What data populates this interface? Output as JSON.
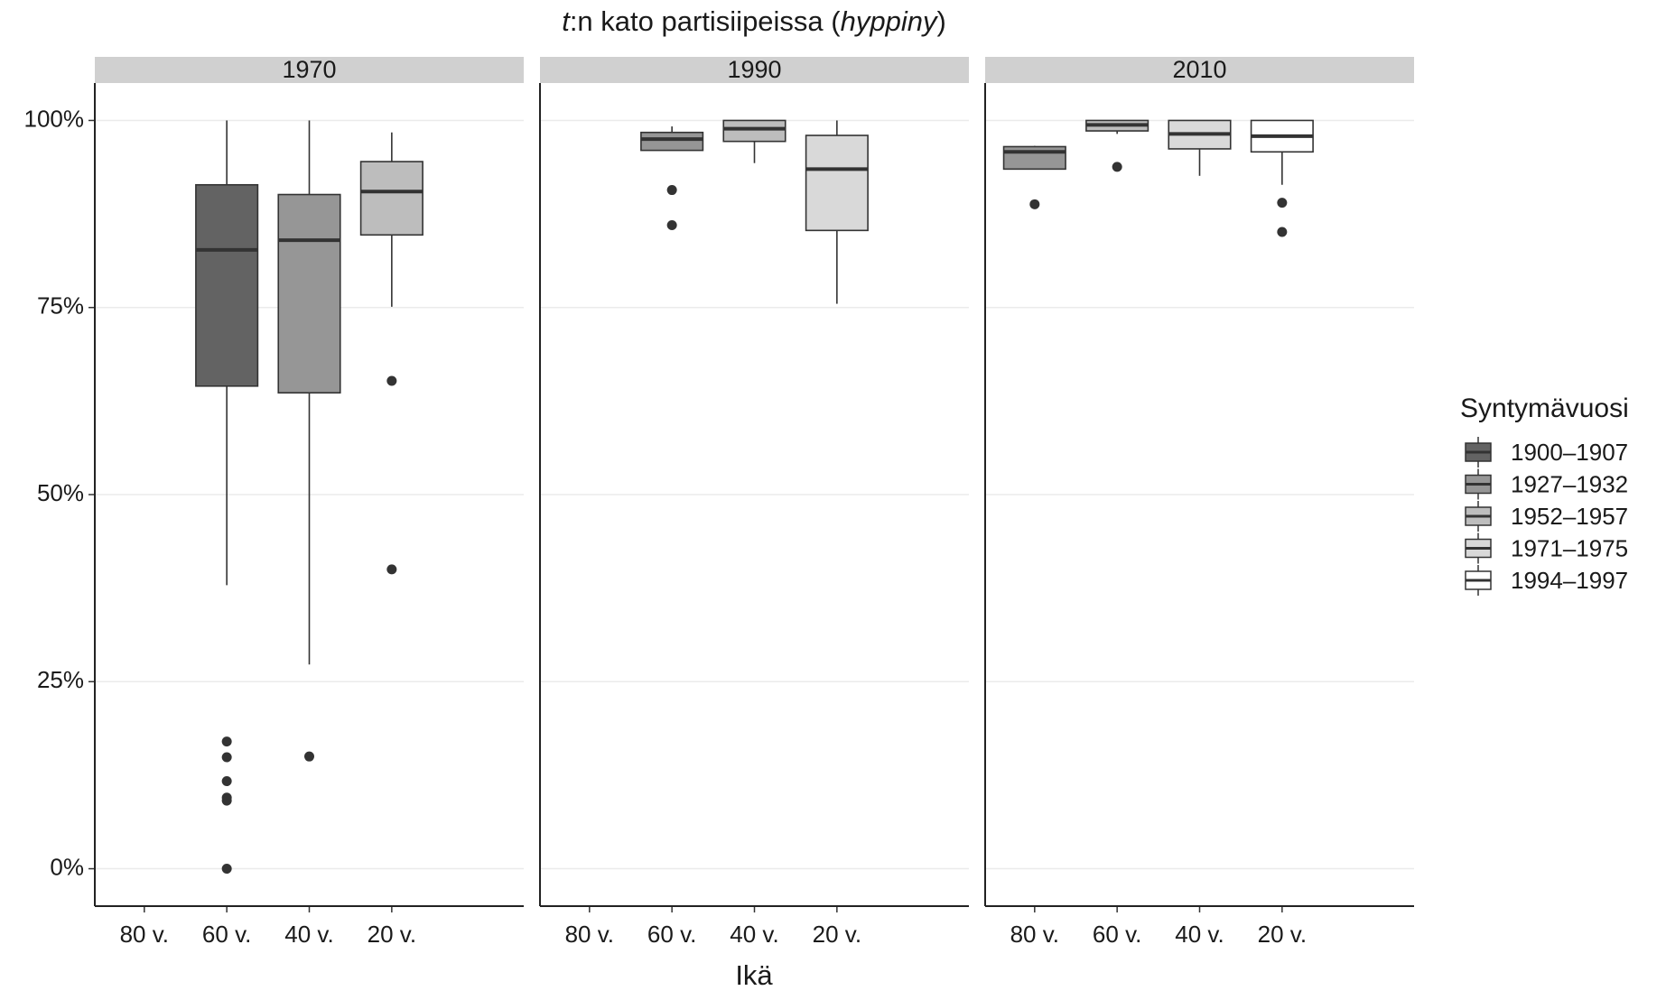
{
  "chart_data": {
    "type": "boxplot",
    "title": [
      {
        "text": "t",
        "italic": true
      },
      {
        "text": ":n kato partisiipeissa (",
        "italic": false
      },
      {
        "text": "hyppiny",
        "italic": true
      },
      {
        "text": ")",
        "italic": false
      }
    ],
    "x_label": "Ikä",
    "legend_title": "Syntymävuosi",
    "categories": [
      "80 v.",
      "60 v.",
      "40 v.",
      "20 v."
    ],
    "groups": [
      {
        "name": "1900–1907",
        "color": "#636363"
      },
      {
        "name": "1927–1932",
        "color": "#969696"
      },
      {
        "name": "1952–1957",
        "color": "#bdbdbd"
      },
      {
        "name": "1971–1975",
        "color": "#d9d9d9"
      },
      {
        "name": "1994–1997",
        "color": "#ffffff"
      }
    ],
    "ylim": [
      -5,
      105
    ],
    "yticks": [
      {
        "value": 0,
        "label": "0%"
      },
      {
        "value": 25,
        "label": "25%"
      },
      {
        "value": 50,
        "label": "50%"
      },
      {
        "value": 75,
        "label": "75%"
      },
      {
        "value": 100,
        "label": "100%"
      }
    ],
    "grid": true,
    "panels": [
      {
        "title": "1970",
        "boxes": [
          {
            "category": "60 v.",
            "group": "1900–1907",
            "whisker_low": 37.9,
            "q1": 64.5,
            "median": 82.7,
            "q3": 91.4,
            "whisker_high": 100,
            "outliers": [
              17.0,
              14.9,
              11.7,
              9.5,
              9.1,
              0
            ]
          },
          {
            "category": "40 v.",
            "group": "1927–1932",
            "whisker_low": 27.3,
            "q1": 63.6,
            "median": 84.0,
            "q3": 90.1,
            "whisker_high": 100,
            "outliers": [
              15.0
            ]
          },
          {
            "category": "20 v.",
            "group": "1952–1957",
            "whisker_low": 75.1,
            "q1": 84.7,
            "median": 90.5,
            "q3": 94.5,
            "whisker_high": 98.4,
            "outliers": [
              65.2,
              40.0
            ]
          }
        ]
      },
      {
        "title": "1990",
        "boxes": [
          {
            "category": "60 v.",
            "group": "1927–1932",
            "whisker_low": 96.0,
            "q1": 96.0,
            "median": 97.5,
            "q3": 98.4,
            "whisker_high": 99.2,
            "outliers": [
              90.7,
              86.0
            ]
          },
          {
            "category": "40 v.",
            "group": "1952–1957",
            "whisker_low": 94.3,
            "q1": 97.2,
            "median": 98.9,
            "q3": 100,
            "whisker_high": 100,
            "outliers": []
          },
          {
            "category": "20 v.",
            "group": "1971–1975",
            "whisker_low": 75.5,
            "q1": 85.3,
            "median": 93.5,
            "q3": 98.0,
            "whisker_high": 100,
            "outliers": []
          }
        ]
      },
      {
        "title": "2010",
        "boxes": [
          {
            "category": "80 v.",
            "group": "1927–1932",
            "whisker_low": 93.5,
            "q1": 93.5,
            "median": 95.8,
            "q3": 96.5,
            "whisker_high": 96.6,
            "outliers": [
              88.8
            ]
          },
          {
            "category": "60 v.",
            "group": "1952–1957",
            "whisker_low": 98.2,
            "q1": 98.6,
            "median": 99.4,
            "q3": 100,
            "whisker_high": 100,
            "outliers": [
              93.8
            ]
          },
          {
            "category": "40 v.",
            "group": "1971–1975",
            "whisker_low": 92.6,
            "q1": 96.2,
            "median": 98.2,
            "q3": 100,
            "whisker_high": 100,
            "outliers": []
          },
          {
            "category": "20 v.",
            "group": "1994–1997",
            "whisker_low": 91.4,
            "q1": 95.8,
            "median": 97.9,
            "q3": 100,
            "whisker_high": 100,
            "outliers": [
              89.0,
              85.1
            ]
          }
        ]
      }
    ]
  }
}
